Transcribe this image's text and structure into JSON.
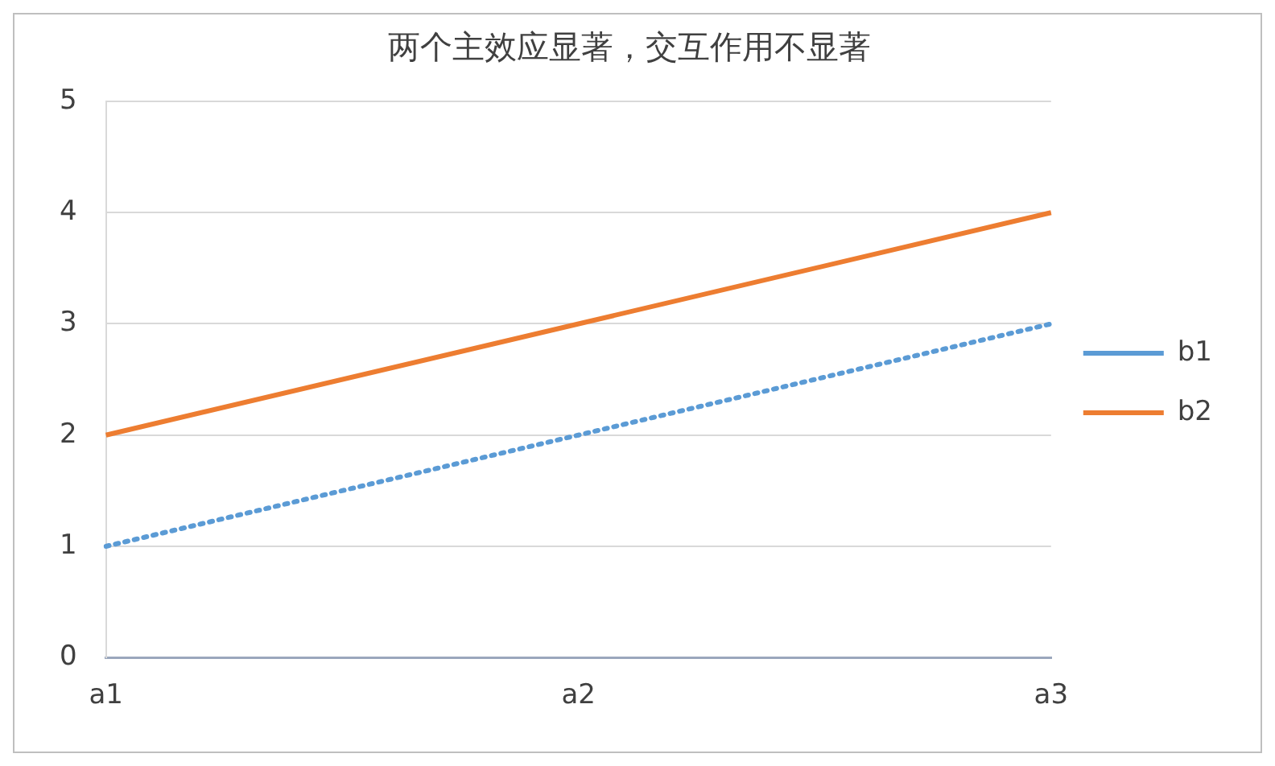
{
  "chart_data": {
    "type": "line",
    "title": "两个主效应显著，交互作用不显著",
    "categories": [
      "a1",
      "a2",
      "a3"
    ],
    "series": [
      {
        "name": "b1",
        "color": "#5b9bd5",
        "values": [
          1,
          2,
          3
        ],
        "line_style": "dotted"
      },
      {
        "name": "b2",
        "color": "#ed7d31",
        "values": [
          2,
          3,
          4
        ],
        "line_style": "solid"
      }
    ],
    "ylim": [
      0,
      5
    ],
    "yticks": [
      0,
      1,
      2,
      3,
      4,
      5
    ],
    "grid": "y",
    "legend": "right",
    "marker": "none"
  }
}
